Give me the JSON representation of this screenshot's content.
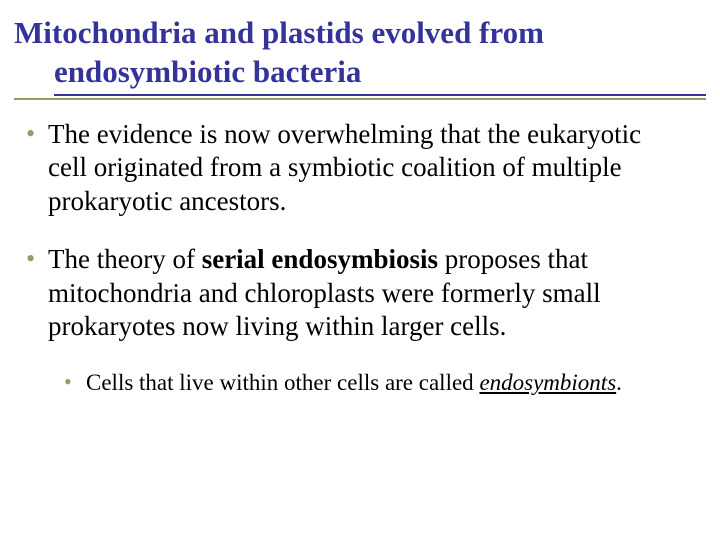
{
  "slide": {
    "title": "Mitochondria and plastids evolved from endosymbiotic bacteria",
    "title_color": "#333399",
    "rule1_color": "#333399",
    "rule2_color": "#999966",
    "bullet_dot_color": "#999966",
    "text_color": "#000000",
    "background_color": "#ffffff",
    "title_fontsize": 31,
    "body_fontsize": 27,
    "sub_fontsize": 23,
    "bullets": [
      {
        "level": 1,
        "text": "The evidence is now overwhelming that the eukaryotic cell originated from a symbiotic coalition of multiple prokaryotic ancestors."
      },
      {
        "level": 1,
        "prefix": "The theory of ",
        "bold": "serial endosymbiosis",
        "suffix": " proposes that mitochondria and chloroplasts were formerly small prokaryotes now living within larger cells."
      },
      {
        "level": 2,
        "prefix": "Cells that live within other cells are called ",
        "underline_italic": "endosymbionts",
        "suffix": "."
      }
    ]
  }
}
